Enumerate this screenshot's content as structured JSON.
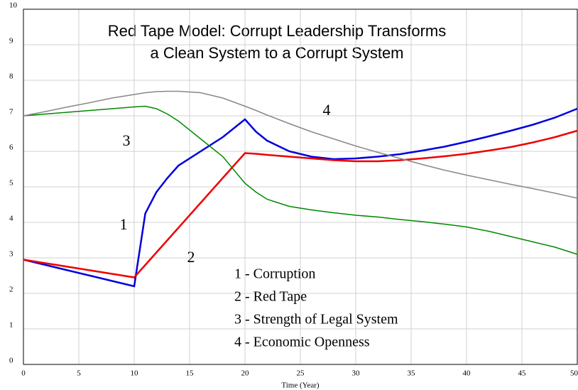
{
  "chart_data": {
    "type": "line",
    "title": [
      "Red Tape Model:  Corrupt Leadership Transforms",
      "a Clean System to a Corrupt System"
    ],
    "x_label": "Time (Year)",
    "x": [
      0,
      2,
      4,
      6,
      8,
      10,
      11,
      12,
      13,
      14,
      16,
      18,
      20,
      21,
      22,
      24,
      26,
      28,
      30,
      32,
      34,
      36,
      38,
      40,
      42,
      44,
      46,
      48,
      50
    ],
    "series": [
      {
        "name": "1 - Corruption",
        "color": "#0000dd",
        "values": [
          2.95,
          2.8,
          2.65,
          2.5,
          2.35,
          2.2,
          4.25,
          4.85,
          5.25,
          5.6,
          6.0,
          6.4,
          6.9,
          6.55,
          6.3,
          6.0,
          5.85,
          5.78,
          5.8,
          5.85,
          5.92,
          6.02,
          6.13,
          6.27,
          6.42,
          6.58,
          6.75,
          6.95,
          7.2
        ]
      },
      {
        "name": "2 - Red Tape",
        "color": "#ee0000",
        "values": [
          2.95,
          2.85,
          2.75,
          2.65,
          2.55,
          2.45,
          2.8,
          3.15,
          3.5,
          3.85,
          4.55,
          5.25,
          5.95,
          5.93,
          5.9,
          5.85,
          5.8,
          5.75,
          5.72,
          5.72,
          5.75,
          5.8,
          5.86,
          5.93,
          6.02,
          6.12,
          6.25,
          6.4,
          6.58
        ]
      },
      {
        "name": "3 - Strength of Legal System",
        "color": "#008800",
        "values": [
          7.0,
          7.05,
          7.1,
          7.15,
          7.2,
          7.25,
          7.27,
          7.2,
          7.05,
          6.85,
          6.35,
          5.85,
          5.1,
          4.85,
          4.65,
          4.45,
          4.35,
          4.27,
          4.2,
          4.15,
          4.08,
          4.02,
          3.95,
          3.87,
          3.75,
          3.6,
          3.45,
          3.3,
          3.1
        ]
      },
      {
        "name": "4 - Economic Openness",
        "color": "#888888",
        "values": [
          7.0,
          7.12,
          7.25,
          7.37,
          7.5,
          7.6,
          7.65,
          7.68,
          7.69,
          7.69,
          7.65,
          7.5,
          7.27,
          7.15,
          7.02,
          6.78,
          6.55,
          6.35,
          6.15,
          5.97,
          5.8,
          5.63,
          5.47,
          5.33,
          5.2,
          5.07,
          4.95,
          4.82,
          4.68
        ]
      }
    ],
    "annotations": [
      "1",
      "2",
      "3",
      "4"
    ],
    "xlim": [
      0,
      50
    ],
    "xticks": [
      0,
      5,
      10,
      15,
      20,
      25,
      30,
      35,
      40,
      45,
      50
    ],
    "ylim": [
      0,
      10
    ],
    "yticks": [
      0,
      1,
      2,
      3,
      4,
      5,
      6,
      7,
      8,
      9,
      10
    ],
    "grid": true
  }
}
